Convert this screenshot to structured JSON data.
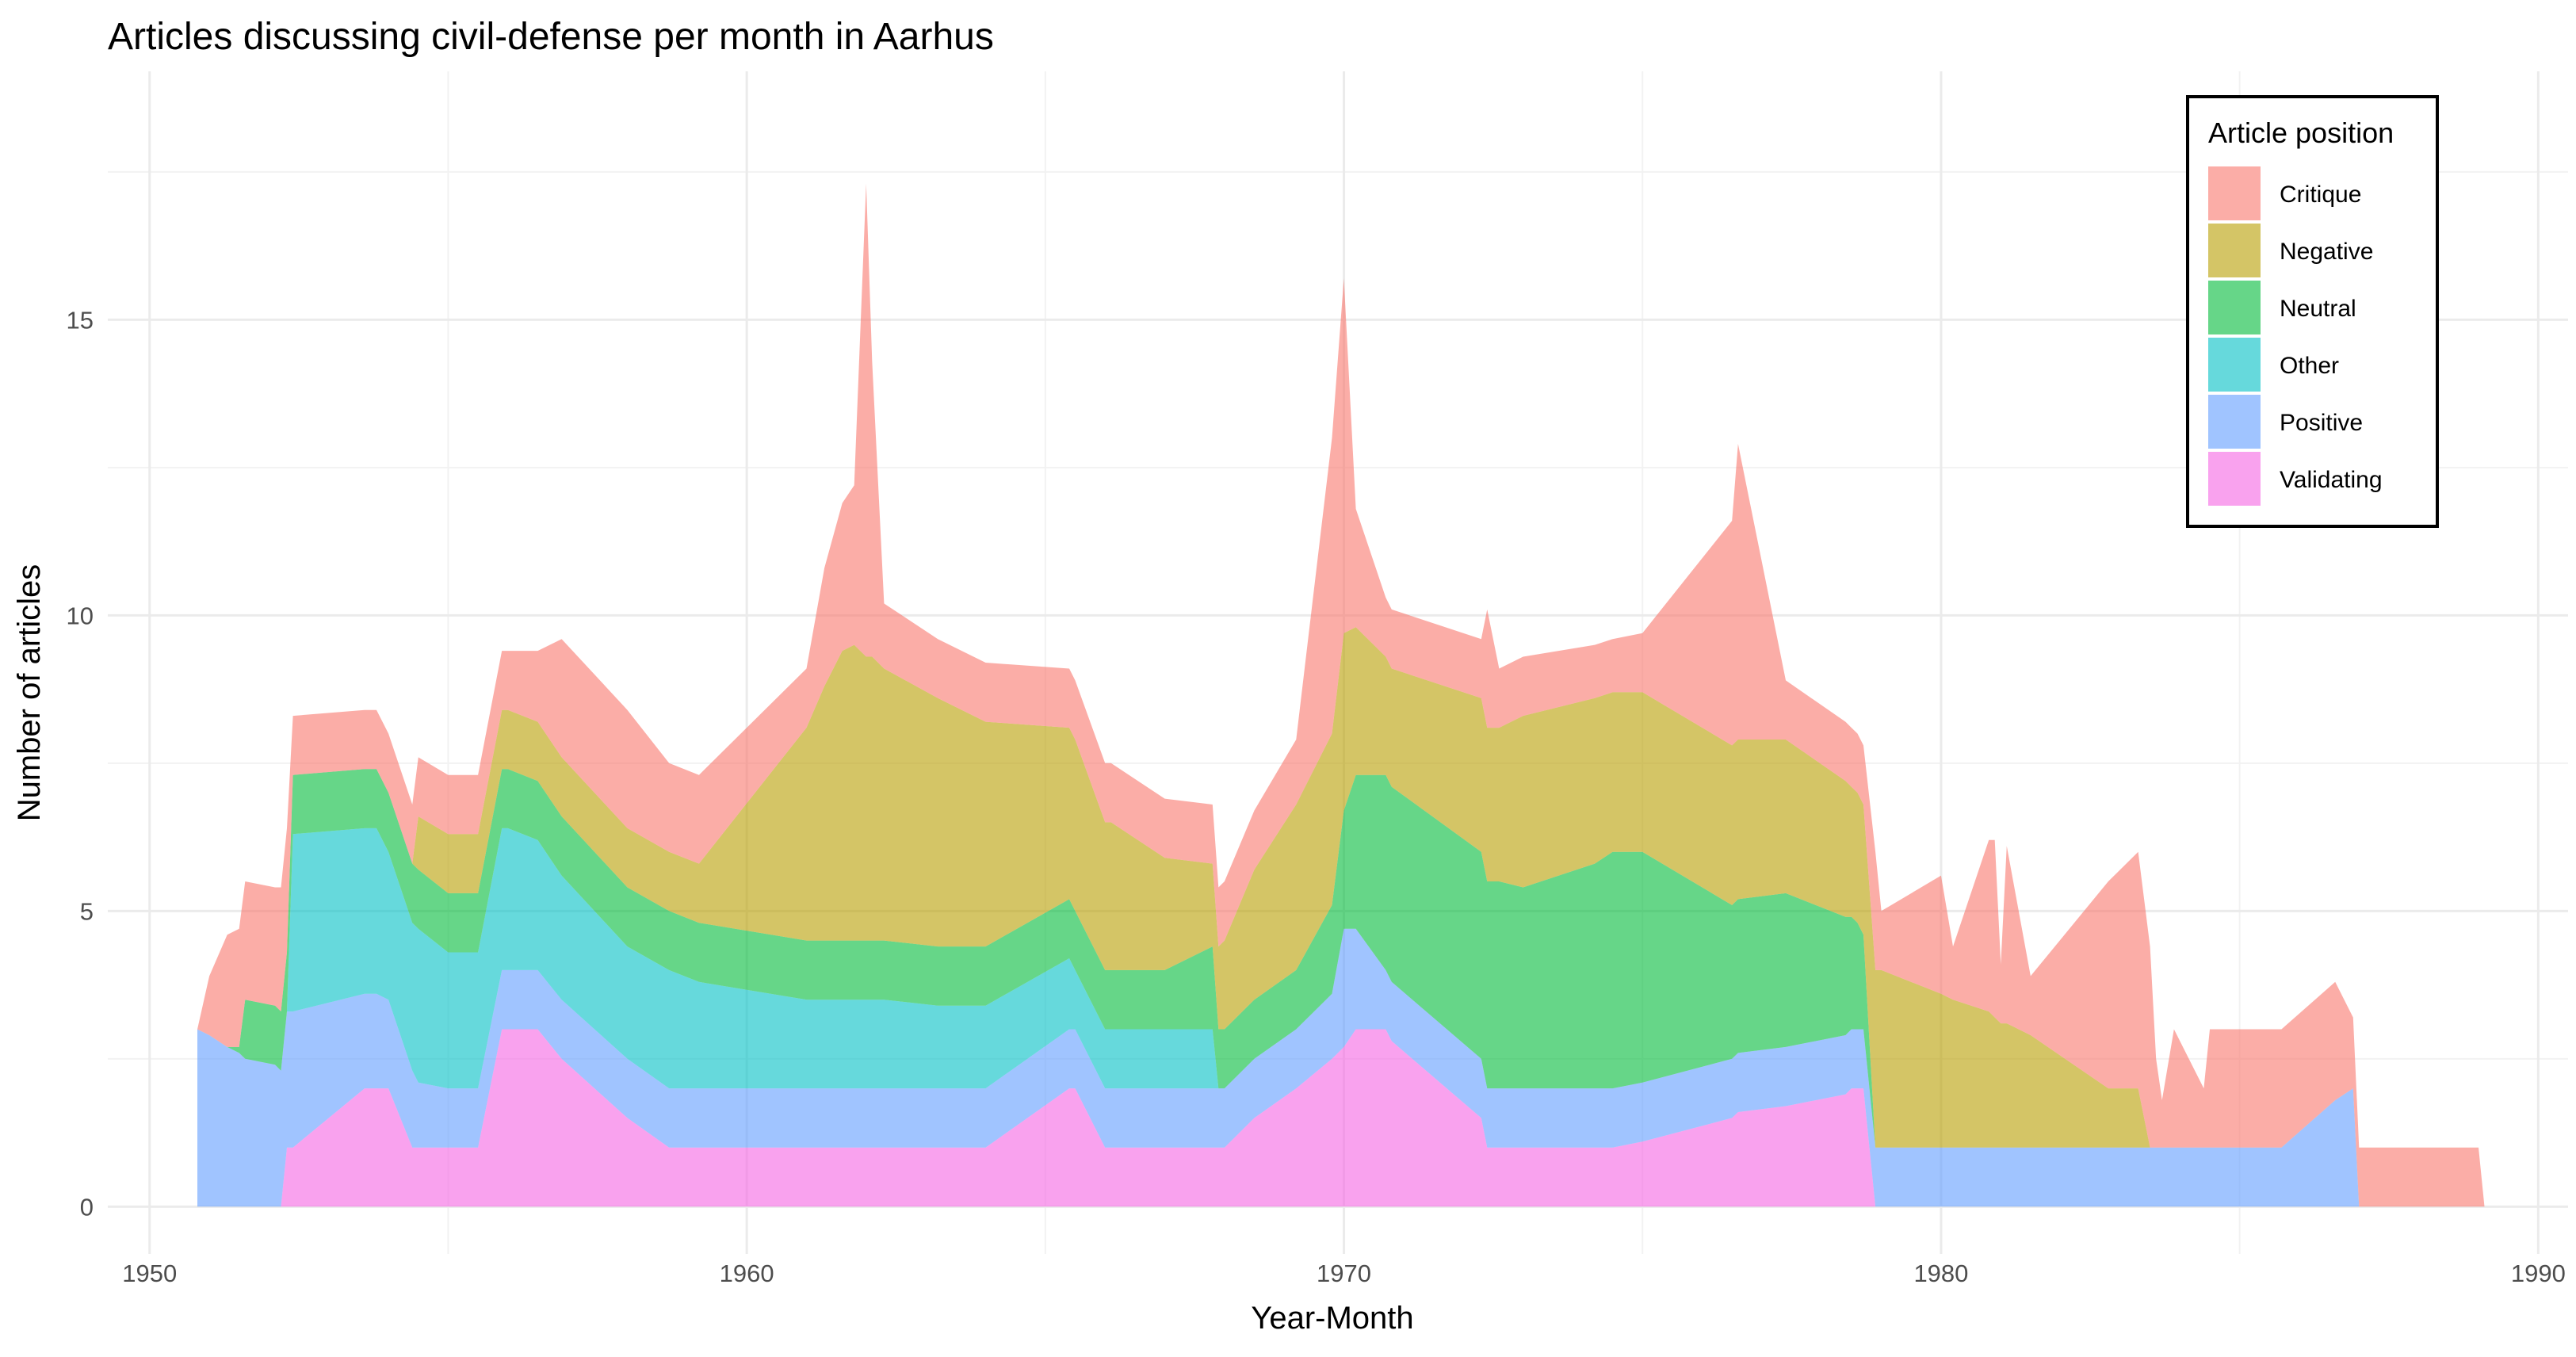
{
  "chart_data": {
    "type": "area",
    "stacked": true,
    "title": "Articles discussing civil-defense per month in Aarhus",
    "xlabel": "Year-Month",
    "ylabel": "Number of articles",
    "xlim": [
      1949.3,
      1990.5
    ],
    "ylim": [
      -0.8,
      19.2
    ],
    "x_ticks": [
      1950,
      1960,
      1970,
      1980,
      1990
    ],
    "y_ticks": [
      0,
      5,
      10,
      15
    ],
    "grid": true,
    "legend": {
      "title": "Article position",
      "placement": "top-right",
      "entries": [
        "Critique",
        "Negative",
        "Neutral",
        "Other",
        "Positive",
        "Validating"
      ]
    },
    "colors": {
      "Critique": "#F8766D",
      "Negative": "#B79F00",
      "Neutral": "#00BA38",
      "Other": "#00BFC4",
      "Positive": "#619CFF",
      "Validating": "#F564E3"
    },
    "x": [
      1950.8,
      1951.0,
      1951.3,
      1951.5,
      1951.6,
      1952.1,
      1952.2,
      1952.3,
      1952.4,
      1953.6,
      1953.8,
      1954.0,
      1954.4,
      1954.5,
      1955.0,
      1955.4,
      1955.5,
      1955.9,
      1956.0,
      1956.5,
      1956.9,
      1958.0,
      1958.7,
      1959.2,
      1961.0,
      1961.3,
      1961.6,
      1961.8,
      1962.0,
      1962.1,
      1962.3,
      1963.2,
      1964.0,
      1965.4,
      1965.5,
      1966.0,
      1966.1,
      1967.0,
      1967.8,
      1967.9,
      1968.0,
      1968.5,
      1969.2,
      1969.8,
      1970.0,
      1970.2,
      1970.7,
      1970.8,
      1972.3,
      1972.4,
      1972.6,
      1973.0,
      1974.2,
      1974.5,
      1975.0,
      1976.5,
      1976.6,
      1977.4,
      1978.4,
      1978.5,
      1978.6,
      1978.7,
      1978.9,
      1979.0,
      1980.0,
      1980.2,
      1980.8,
      1980.9,
      1981.0,
      1981.1,
      1981.5,
      1982.8,
      1983.3,
      1983.5,
      1983.6,
      1983.7,
      1983.9,
      1984.4,
      1984.5,
      1985.7,
      1986.6,
      1986.9,
      1987.0,
      1989.0,
      1989.1
    ],
    "series": [
      {
        "name": "Validating",
        "values": [
          0,
          0,
          0,
          0,
          0,
          0,
          0,
          1,
          1,
          2,
          2,
          2,
          1,
          1,
          1,
          1,
          1,
          3,
          3,
          3,
          2.5,
          1.5,
          1,
          1,
          1,
          1,
          1,
          1,
          1,
          1,
          1,
          1,
          1,
          2,
          2,
          1,
          1,
          1,
          1,
          1,
          1,
          1.5,
          2,
          2.5,
          2.7,
          3,
          3,
          2.8,
          1.5,
          1,
          1,
          1,
          1,
          1,
          1.1,
          1.5,
          1.6,
          1.7,
          1.9,
          2,
          2,
          2,
          0,
          0,
          0,
          0,
          0,
          0,
          0,
          0,
          0,
          0,
          0,
          0,
          0,
          0,
          0,
          0,
          0,
          0,
          0,
          0,
          0,
          0,
          0
        ]
      },
      {
        "name": "Positive",
        "values": [
          3,
          2.9,
          2.7,
          2.6,
          2.5,
          2.4,
          2.3,
          2.3,
          2.3,
          1.6,
          1.6,
          1.5,
          1.3,
          1.1,
          1,
          1,
          1,
          1,
          1,
          1,
          1,
          1,
          1,
          1,
          1,
          1,
          1,
          1,
          1,
          1,
          1,
          1,
          1,
          1,
          1,
          1,
          1,
          1,
          1,
          1,
          1,
          1,
          1,
          1.1,
          2,
          1.7,
          1,
          1,
          1,
          1,
          1,
          1,
          1,
          1,
          1,
          1,
          1,
          1,
          1,
          1,
          1,
          1,
          1,
          1,
          1,
          1,
          1,
          1,
          1,
          1,
          1,
          1,
          1,
          1,
          1,
          1,
          1,
          1,
          1,
          1,
          1.8,
          2,
          0,
          0,
          0
        ]
      },
      {
        "name": "Other",
        "values": [
          0,
          0,
          0,
          0,
          0,
          0,
          0,
          0,
          3,
          2.8,
          2.8,
          2.5,
          2.5,
          2.6,
          2.3,
          2.3,
          2.3,
          2.4,
          2.4,
          2.2,
          2.1,
          1.9,
          2,
          1.8,
          1.5,
          1.5,
          1.5,
          1.5,
          1.5,
          1.5,
          1.5,
          1.4,
          1.4,
          1.2,
          1,
          1,
          1,
          1,
          1,
          0,
          0,
          0,
          0,
          0,
          0,
          0,
          0,
          0,
          0,
          0,
          0,
          0,
          0,
          0,
          0,
          0,
          0,
          0,
          0,
          0,
          0,
          0,
          0,
          0,
          0,
          0,
          0,
          0,
          0,
          0,
          0,
          0,
          0,
          0,
          0,
          0,
          0,
          0,
          0,
          0,
          0,
          0,
          0,
          0,
          0
        ]
      },
      {
        "name": "Neutral",
        "values": [
          0,
          0,
          0,
          0.1,
          1,
          1,
          1,
          1,
          1,
          1,
          1,
          1,
          1,
          1,
          1,
          1,
          1,
          1,
          1,
          1,
          1,
          1,
          1,
          1,
          1,
          1,
          1,
          1,
          1,
          1,
          1,
          1,
          1,
          1,
          1,
          1,
          1,
          1,
          1.4,
          1,
          1,
          1,
          1,
          1.5,
          2,
          2.6,
          3.3,
          3.3,
          3.5,
          3.5,
          3.5,
          3.4,
          3.8,
          4,
          3.9,
          2.6,
          2.6,
          2.6,
          2,
          1.9,
          1.8,
          1.6,
          0,
          0,
          0,
          0,
          0,
          0,
          0,
          0,
          0,
          0,
          0,
          0,
          0,
          0,
          0,
          0,
          0,
          0,
          0,
          0,
          0,
          0,
          0
        ]
      },
      {
        "name": "Negative",
        "values": [
          0,
          0,
          0,
          0,
          0,
          0,
          0,
          0,
          0,
          0,
          0,
          0,
          0,
          0.9,
          1,
          1,
          1,
          1,
          1,
          1,
          1,
          1,
          1,
          1,
          3.6,
          4.3,
          4.9,
          5,
          4.8,
          4.8,
          4.6,
          4.2,
          3.8,
          2.9,
          2.9,
          2.5,
          2.5,
          1.9,
          1.4,
          1.4,
          1.5,
          2.2,
          2.8,
          2.9,
          3,
          2.5,
          2,
          2,
          2.6,
          2.6,
          2.6,
          2.9,
          2.8,
          2.7,
          2.7,
          2.7,
          2.7,
          2.6,
          2.3,
          2.2,
          2.2,
          2.2,
          3,
          3,
          2.6,
          2.5,
          2.3,
          2.2,
          2.1,
          2.1,
          1.9,
          1,
          1,
          0,
          0,
          0,
          0,
          0,
          0,
          0,
          0,
          0,
          0,
          0,
          0
        ]
      },
      {
        "name": "Critique",
        "values": [
          0,
          1,
          1.9,
          2,
          2,
          2,
          2.1,
          2.1,
          1,
          1,
          1,
          1,
          1,
          1,
          1,
          1,
          1,
          1,
          1,
          1.2,
          2,
          2,
          1.5,
          1.5,
          1,
          2,
          2.5,
          2.7,
          8,
          5,
          1.1,
          1,
          1,
          1,
          1,
          1,
          1,
          1,
          1,
          1,
          1,
          1,
          1.1,
          5,
          6,
          2,
          1,
          1,
          1,
          2,
          1,
          1,
          0.9,
          0.9,
          1,
          3.8,
          5,
          1,
          1,
          1,
          1,
          1,
          2,
          1,
          2,
          0.9,
          2.9,
          3,
          1,
          3,
          1,
          3.5,
          4,
          3.4,
          1.5,
          0.8,
          2,
          1,
          2,
          2,
          2,
          1.2,
          1,
          1,
          0
        ]
      }
    ]
  }
}
